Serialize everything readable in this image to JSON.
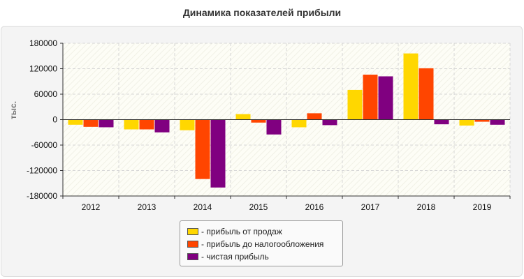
{
  "chart_data": {
    "type": "bar",
    "title": "Динамика показателей прибыли",
    "xlabel": "",
    "ylabel": "тыс.",
    "categories": [
      "2012",
      "2013",
      "2014",
      "2015",
      "2016",
      "2017",
      "2018",
      "2019"
    ],
    "ylim": [
      -180000,
      180000
    ],
    "yticks": [
      180000,
      120000,
      60000,
      0,
      -60000,
      -120000,
      -180000
    ],
    "grid": true,
    "legend_position": "bottom-center",
    "series": [
      {
        "name": "- прибыль от продаж",
        "color": "#ffd700",
        "values": [
          -12000,
          -23000,
          -25000,
          13000,
          -18000,
          70000,
          156000,
          -14000
        ]
      },
      {
        "name": "- прибыль до налогообложения",
        "color": "#ff4500",
        "values": [
          -17000,
          -23000,
          -140000,
          -7000,
          15000,
          106000,
          121000,
          -5000
        ]
      },
      {
        "name": "- чистая прибыль",
        "color": "#800080",
        "values": [
          -18000,
          -30000,
          -160000,
          -35000,
          -13000,
          102000,
          -11000,
          -12000
        ]
      }
    ]
  }
}
